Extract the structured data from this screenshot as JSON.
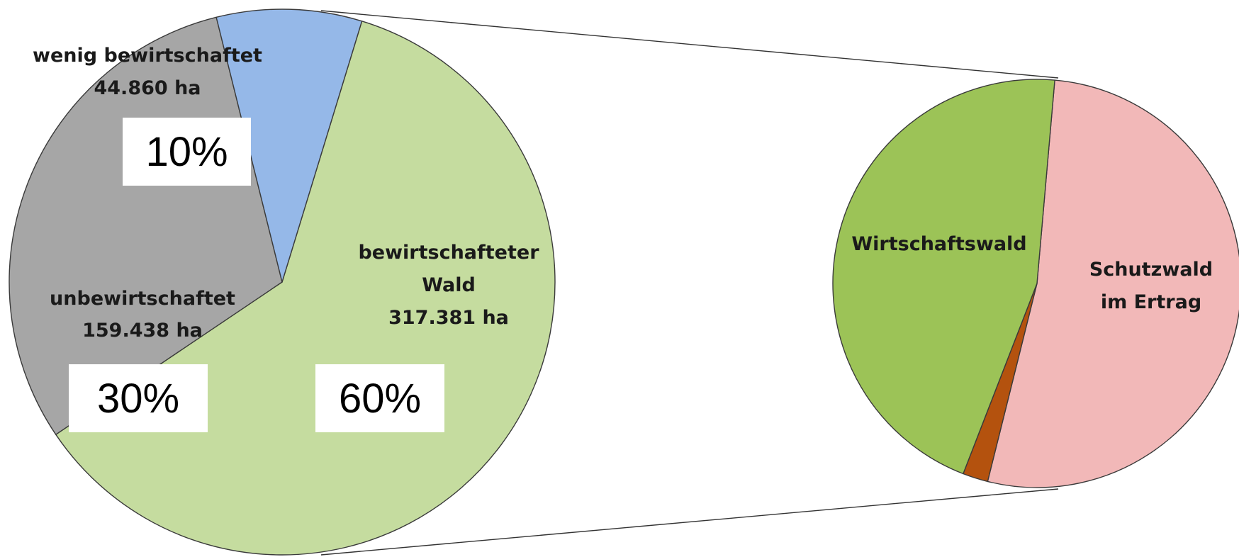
{
  "chart_data": [
    {
      "type": "pie",
      "slices": [
        {
          "key": "bewirtschaftet",
          "label_lines": [
            "bewirtschafteter",
            "Wald",
            "317.381 ha"
          ],
          "value": 317381,
          "percent_label": "60%",
          "color": "#c5dc9f"
        },
        {
          "key": "unbewirtschaftet",
          "label_lines": [
            "unbewirtschaftet",
            "159.438 ha"
          ],
          "value": 159438,
          "percent_label": "30%",
          "color": "#a6a6a6"
        },
        {
          "key": "wenig",
          "label_lines": [
            "wenig bewirtschaftet",
            "44.860 ha"
          ],
          "value": 44860,
          "percent_label": "10%",
          "color": "#95b8e8"
        }
      ]
    },
    {
      "type": "pie",
      "slices": [
        {
          "key": "schutzwald",
          "label_lines": [
            "Schutzwald",
            "im Ertrag"
          ],
          "value": 52.5,
          "color": "#f2b8b8"
        },
        {
          "key": "sonstige",
          "label_lines": [],
          "value": 2,
          "color": "#b4520e"
        },
        {
          "key": "wirtschaftswald",
          "label_lines": [
            "Wirtschaftswald"
          ],
          "value": 45.5,
          "color": "#9cc357"
        }
      ]
    }
  ]
}
